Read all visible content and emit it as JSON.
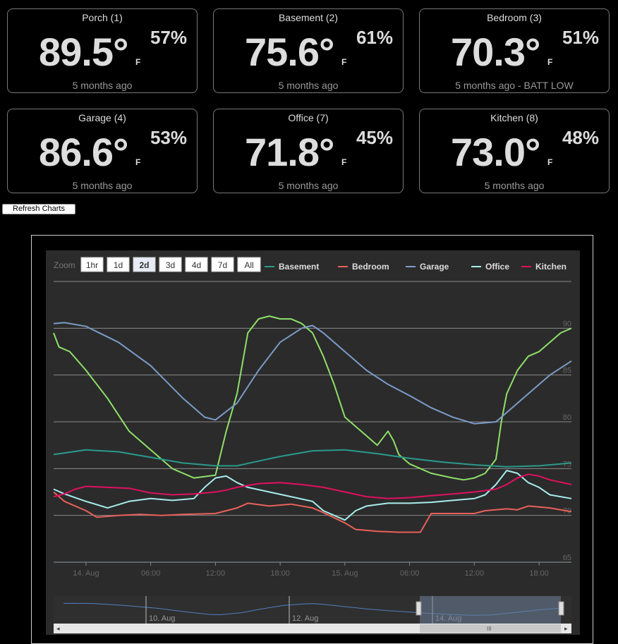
{
  "sensors": [
    {
      "name": "Porch (1)",
      "temp": "89.5°",
      "unit": "F",
      "humidity": "57%",
      "updated": "5 months ago"
    },
    {
      "name": "Basement (2)",
      "temp": "75.6°",
      "unit": "F",
      "humidity": "61%",
      "updated": "5 months ago"
    },
    {
      "name": "Bedroom (3)",
      "temp": "70.3°",
      "unit": "F",
      "humidity": "51%",
      "updated": "5 months ago - BATT LOW"
    },
    {
      "name": "Garage (4)",
      "temp": "86.6°",
      "unit": "F",
      "humidity": "53%",
      "updated": "5 months ago"
    },
    {
      "name": "Office (7)",
      "temp": "71.8°",
      "unit": "F",
      "humidity": "45%",
      "updated": "5 months ago"
    },
    {
      "name": "Kitchen (8)",
      "temp": "73.0°",
      "unit": "F",
      "humidity": "48%",
      "updated": "5 months ago"
    }
  ],
  "refresh_label": "Refresh Charts",
  "chart_data": {
    "type": "line",
    "zoom_label": "Zoom",
    "zoom_buttons": [
      "1hr",
      "1d",
      "2d",
      "3d",
      "4d",
      "7d",
      "All"
    ],
    "zoom_selected": "2d",
    "x_unit": "hours from 2025-08-13 21:00 (axis labels shown as clock time / day)",
    "x_range": [
      0,
      48
    ],
    "x_ticks": [
      {
        "x": 3,
        "label": "14. Aug"
      },
      {
        "x": 9,
        "label": "06:00"
      },
      {
        "x": 15,
        "label": "12:00"
      },
      {
        "x": 21,
        "label": "18:00"
      },
      {
        "x": 27,
        "label": "15. Aug"
      },
      {
        "x": 33,
        "label": "06:00"
      },
      {
        "x": 39,
        "label": "12:00"
      },
      {
        "x": 45,
        "label": "18:00"
      }
    ],
    "ylim": [
      65,
      95
    ],
    "y_ticks": [
      65,
      70,
      75,
      80,
      85,
      90
    ],
    "grid": true,
    "legend_position": "top-right",
    "series": [
      {
        "name": "",
        "color": "#8ee06a",
        "values": [
          [
            0,
            89.5
          ],
          [
            0.5,
            88.0
          ],
          [
            1.5,
            87.5
          ],
          [
            3,
            85.5
          ],
          [
            5,
            82.5
          ],
          [
            7,
            79.0
          ],
          [
            9,
            77.0
          ],
          [
            11,
            75.0
          ],
          [
            13,
            74.0
          ],
          [
            15,
            74.3
          ],
          [
            16,
            79.0
          ],
          [
            17,
            83.0
          ],
          [
            18,
            89.5
          ],
          [
            19,
            91.0
          ],
          [
            20,
            91.3
          ],
          [
            21,
            91.0
          ],
          [
            22,
            91.0
          ],
          [
            23,
            90.5
          ],
          [
            24,
            89.5
          ],
          [
            25,
            87.0
          ],
          [
            26,
            84.0
          ],
          [
            27,
            80.5
          ],
          [
            29,
            78.5
          ],
          [
            30,
            77.5
          ],
          [
            31,
            79.0
          ],
          [
            31.5,
            78.0
          ],
          [
            32,
            76.5
          ],
          [
            33,
            75.5
          ],
          [
            35,
            74.5
          ],
          [
            37,
            74.0
          ],
          [
            38,
            73.8
          ],
          [
            39,
            74.0
          ],
          [
            40,
            74.5
          ],
          [
            41,
            76.0
          ],
          [
            41.5,
            80.0
          ],
          [
            42,
            83.0
          ],
          [
            43,
            85.5
          ],
          [
            44,
            87.0
          ],
          [
            45,
            87.5
          ],
          [
            46,
            88.5
          ],
          [
            47,
            89.5
          ],
          [
            48,
            90.0
          ]
        ]
      },
      {
        "name": "Basement",
        "color": "#2a9a8c",
        "values": [
          [
            0,
            76.5
          ],
          [
            3,
            77.0
          ],
          [
            6,
            76.8
          ],
          [
            9,
            76.2
          ],
          [
            12,
            75.6
          ],
          [
            15,
            75.3
          ],
          [
            17,
            75.3
          ],
          [
            19,
            75.8
          ],
          [
            21,
            76.3
          ],
          [
            24,
            76.9
          ],
          [
            27,
            77.0
          ],
          [
            30,
            76.6
          ],
          [
            33,
            76.1
          ],
          [
            36,
            75.7
          ],
          [
            39,
            75.4
          ],
          [
            42,
            75.2
          ],
          [
            45,
            75.3
          ],
          [
            48,
            75.6
          ]
        ]
      },
      {
        "name": "Bedroom",
        "color": "#e8615a",
        "values": [
          [
            0,
            72.5
          ],
          [
            1,
            71.5
          ],
          [
            3,
            70.5
          ],
          [
            4,
            69.8
          ],
          [
            6,
            70.0
          ],
          [
            8,
            70.1
          ],
          [
            10,
            70.0
          ],
          [
            12,
            70.1
          ],
          [
            15,
            70.2
          ],
          [
            17,
            70.8
          ],
          [
            18,
            71.3
          ],
          [
            20,
            71.0
          ],
          [
            22,
            71.2
          ],
          [
            24,
            70.8
          ],
          [
            25,
            70.3
          ],
          [
            27,
            69.2
          ],
          [
            28,
            68.5
          ],
          [
            30,
            68.3
          ],
          [
            32,
            68.2
          ],
          [
            34,
            68.2
          ],
          [
            35,
            70.2
          ],
          [
            37,
            70.2
          ],
          [
            39,
            70.2
          ],
          [
            40,
            70.5
          ],
          [
            42,
            70.7
          ],
          [
            43,
            70.6
          ],
          [
            44,
            71.0
          ],
          [
            46,
            70.8
          ],
          [
            48,
            70.4
          ]
        ]
      },
      {
        "name": "Garage",
        "color": "#7b9cc8",
        "values": [
          [
            0,
            90.5
          ],
          [
            1,
            90.6
          ],
          [
            3,
            90.2
          ],
          [
            6,
            88.5
          ],
          [
            9,
            86.0
          ],
          [
            12,
            82.5
          ],
          [
            14,
            80.5
          ],
          [
            15,
            80.2
          ],
          [
            17,
            82.0
          ],
          [
            19,
            85.5
          ],
          [
            21,
            88.5
          ],
          [
            23,
            90.0
          ],
          [
            24,
            90.3
          ],
          [
            25,
            89.5
          ],
          [
            27,
            87.5
          ],
          [
            29,
            85.5
          ],
          [
            31,
            84.0
          ],
          [
            33,
            82.8
          ],
          [
            35,
            81.5
          ],
          [
            37,
            80.5
          ],
          [
            39,
            79.8
          ],
          [
            41,
            80.0
          ],
          [
            42,
            81.0
          ],
          [
            44,
            83.0
          ],
          [
            46,
            85.0
          ],
          [
            48,
            86.5
          ]
        ]
      },
      {
        "name": "Office",
        "color": "#a8ecec",
        "values": [
          [
            0,
            72.8
          ],
          [
            1,
            72.3
          ],
          [
            3,
            71.5
          ],
          [
            5,
            70.8
          ],
          [
            7,
            71.5
          ],
          [
            9,
            71.8
          ],
          [
            11,
            71.6
          ],
          [
            13,
            71.8
          ],
          [
            14,
            73.0
          ],
          [
            15,
            74.0
          ],
          [
            16,
            74.2
          ],
          [
            17,
            73.5
          ],
          [
            18,
            73.0
          ],
          [
            20,
            72.5
          ],
          [
            22,
            72.0
          ],
          [
            24,
            71.5
          ],
          [
            25,
            70.5
          ],
          [
            26,
            70.0
          ],
          [
            27,
            69.5
          ],
          [
            28,
            70.5
          ],
          [
            29,
            71.0
          ],
          [
            31,
            71.3
          ],
          [
            33,
            71.3
          ],
          [
            35,
            71.4
          ],
          [
            37,
            71.6
          ],
          [
            39,
            71.8
          ],
          [
            40,
            72.2
          ],
          [
            41,
            73.3
          ],
          [
            42,
            74.8
          ],
          [
            43,
            74.5
          ],
          [
            44,
            73.5
          ],
          [
            45,
            73.0
          ],
          [
            46,
            72.2
          ],
          [
            48,
            71.8
          ]
        ]
      },
      {
        "name": "Kitchen",
        "color": "#e01060",
        "values": [
          [
            0,
            72.0
          ],
          [
            1,
            72.3
          ],
          [
            2,
            72.8
          ],
          [
            3,
            73.1
          ],
          [
            5,
            73.0
          ],
          [
            7,
            72.9
          ],
          [
            9,
            72.4
          ],
          [
            11,
            72.2
          ],
          [
            13,
            72.3
          ],
          [
            15,
            72.5
          ],
          [
            16,
            72.7
          ],
          [
            17,
            73.0
          ],
          [
            19,
            73.4
          ],
          [
            21,
            73.5
          ],
          [
            23,
            73.3
          ],
          [
            25,
            73.0
          ],
          [
            27,
            72.5
          ],
          [
            29,
            72.0
          ],
          [
            31,
            71.8
          ],
          [
            33,
            71.9
          ],
          [
            35,
            72.1
          ],
          [
            37,
            72.3
          ],
          [
            39,
            72.5
          ],
          [
            41,
            72.8
          ],
          [
            42,
            73.3
          ],
          [
            43,
            74.0
          ],
          [
            44,
            74.4
          ],
          [
            45,
            74.2
          ],
          [
            46,
            73.8
          ],
          [
            48,
            73.3
          ]
        ]
      }
    ],
    "navigator_ticks": [
      "10. Aug",
      "12. Aug",
      "14. Aug"
    ]
  }
}
